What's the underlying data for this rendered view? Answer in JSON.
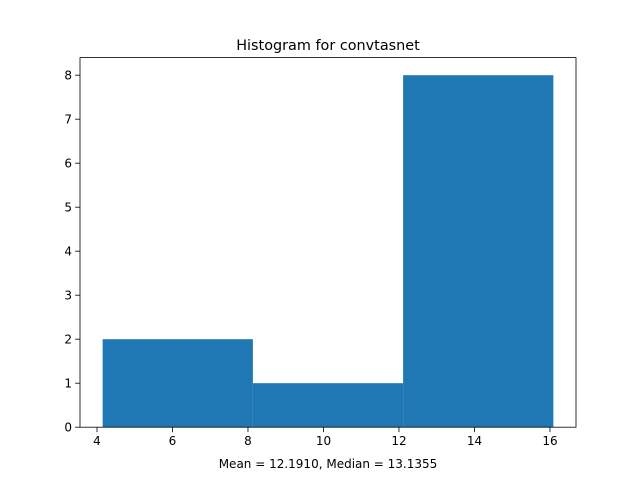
{
  "chart_data": {
    "type": "histogram",
    "title": "Histogram for convtasnet",
    "xlabel": "Mean = 12.1910, Median = 13.1355",
    "ylabel": "",
    "bins": [
      {
        "start": 4.15,
        "end": 8.13,
        "count": 2
      },
      {
        "start": 8.13,
        "end": 12.11,
        "count": 1
      },
      {
        "start": 12.11,
        "end": 16.09,
        "count": 8
      }
    ],
    "xlim": [
      3.55,
      16.69
    ],
    "ylim": [
      0,
      8.4
    ],
    "xticks": [
      4,
      6,
      8,
      10,
      12,
      14,
      16
    ],
    "yticks": [
      0,
      1,
      2,
      3,
      4,
      5,
      6,
      7,
      8
    ],
    "bar_color": "#1f77b4",
    "grid": false,
    "legend": "none"
  }
}
